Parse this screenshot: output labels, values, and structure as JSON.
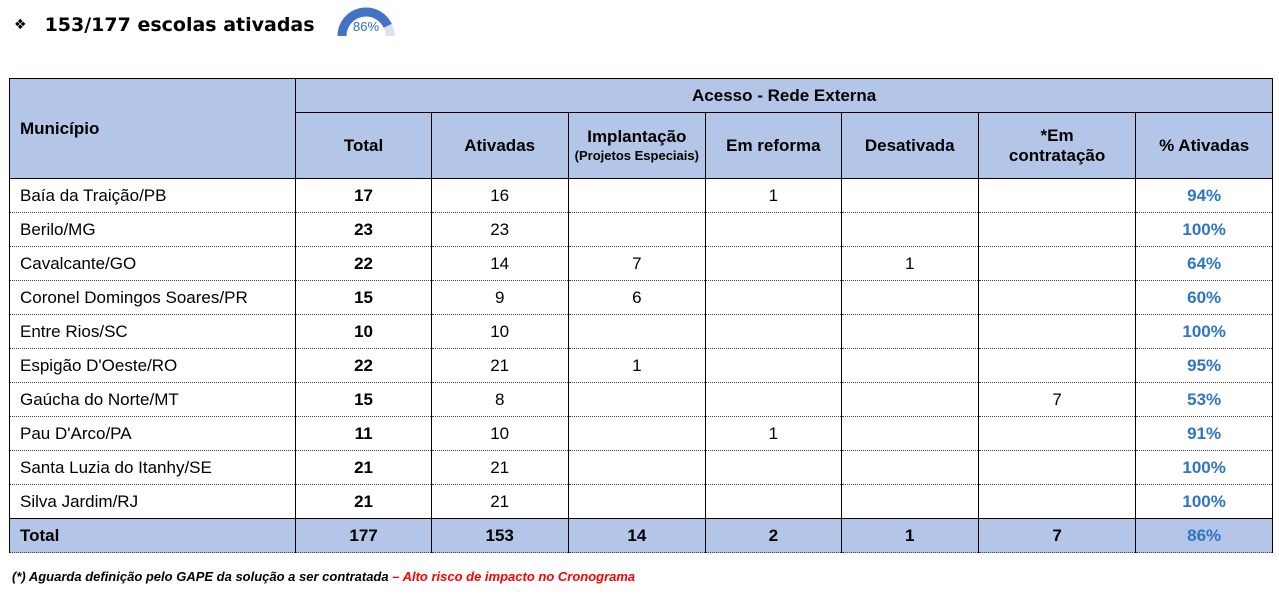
{
  "header": {
    "bullet": "❖",
    "title": "153/177 escolas ativadas",
    "gauge_value": "86%",
    "gauge_fraction": 0.86,
    "gauge_color": "#4472c4"
  },
  "table": {
    "group_header": "Acesso - Rede Externa",
    "columns": {
      "municipio": "Município",
      "total": "Total",
      "ativadas": "Ativadas",
      "implantacao": "Implantação",
      "implantacao_sub": "(Projetos Especiais)",
      "reforma": "Em reforma",
      "desativada": "Desativada",
      "contratacao": "*Em contratação",
      "pct": "% Ativadas"
    },
    "rows": [
      {
        "m": "Baía da Traição/PB",
        "t": "17",
        "a": "16",
        "i": "",
        "r": "1",
        "d": "",
        "c": "",
        "p": "94%"
      },
      {
        "m": "Berilo/MG",
        "t": "23",
        "a": "23",
        "i": "",
        "r": "",
        "d": "",
        "c": "",
        "p": "100%"
      },
      {
        "m": "Cavalcante/GO",
        "t": "22",
        "a": "14",
        "i": "7",
        "r": "",
        "d": "1",
        "c": "",
        "p": "64%"
      },
      {
        "m": "Coronel Domingos Soares/PR",
        "t": "15",
        "a": "9",
        "i": "6",
        "r": "",
        "d": "",
        "c": "",
        "p": "60%"
      },
      {
        "m": "Entre Rios/SC",
        "t": "10",
        "a": "10",
        "i": "",
        "r": "",
        "d": "",
        "c": "",
        "p": "100%"
      },
      {
        "m": "Espigão D'Oeste/RO",
        "t": "22",
        "a": "21",
        "i": "1",
        "r": "",
        "d": "",
        "c": "",
        "p": "95%"
      },
      {
        "m": "Gaúcha do Norte/MT",
        "t": "15",
        "a": "8",
        "i": "",
        "r": "",
        "d": "",
        "c": "7",
        "p": "53%"
      },
      {
        "m": "Pau D'Arco/PA",
        "t": "11",
        "a": "10",
        "i": "",
        "r": "1",
        "d": "",
        "c": "",
        "p": "91%"
      },
      {
        "m": "Santa Luzia do Itanhy/SE",
        "t": "21",
        "a": "21",
        "i": "",
        "r": "",
        "d": "",
        "c": "",
        "p": "100%"
      },
      {
        "m": "Silva Jardim/RJ",
        "t": "21",
        "a": "21",
        "i": "",
        "r": "",
        "d": "",
        "c": "",
        "p": "100%"
      }
    ],
    "total": {
      "m": "Total",
      "t": "177",
      "a": "153",
      "i": "14",
      "r": "2",
      "d": "1",
      "c": "7",
      "p": "86%"
    }
  },
  "footnote": {
    "text": "(*) Aguarda definição pelo GAPE da solução a ser contratada",
    "risk": " – Alto risco de impacto no Cronograma"
  }
}
